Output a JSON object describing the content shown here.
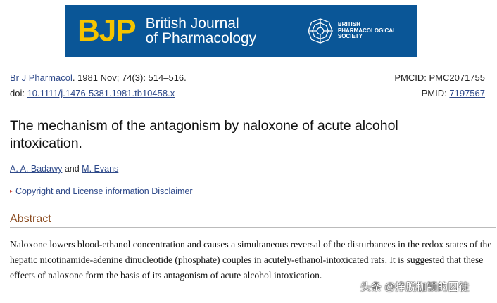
{
  "banner": {
    "logo": "BJP",
    "journal_line1": "British Journal",
    "journal_line2": "of Pharmacology",
    "society": [
      "BRITISH",
      "PHARMACOLOGICAL",
      "SOCIETY"
    ],
    "bg_color": "#0a5697",
    "logo_color": "#f5c400"
  },
  "citation": {
    "journal_link": "Br J Pharmacol",
    "details": ". 1981 Nov; 74(3): 514–516.",
    "doi_label": "doi: ",
    "doi": "10.1111/j.1476-5381.1981.tb10458.x",
    "pmcid": "PMCID: PMC2071755",
    "pmid_label": "PMID: ",
    "pmid": "7197567"
  },
  "title": "The mechanism of the antagonism by naloxone of acute alcohol intoxication.",
  "authors": {
    "a1": "A. A. Badawy",
    "and": " and ",
    "a2": "M. Evans"
  },
  "copyright": {
    "label": "Copyright and License information",
    "disclaimer": "Disclaimer"
  },
  "abstract": {
    "heading": "Abstract",
    "text": "Naloxone lowers blood-ethanol concentration and causes a simultaneous reversal of the disturbances in the redox states of the hepatic nicotinamide-adenine dinucleotide (phosphate) couples in acutely-ethanol-intoxicated rats. It is suggested that these effects of naloxone form the basis of its antagonism of acute alcohol intoxication."
  },
  "watermark": "头条 @挣脱枷锁的囚徒"
}
